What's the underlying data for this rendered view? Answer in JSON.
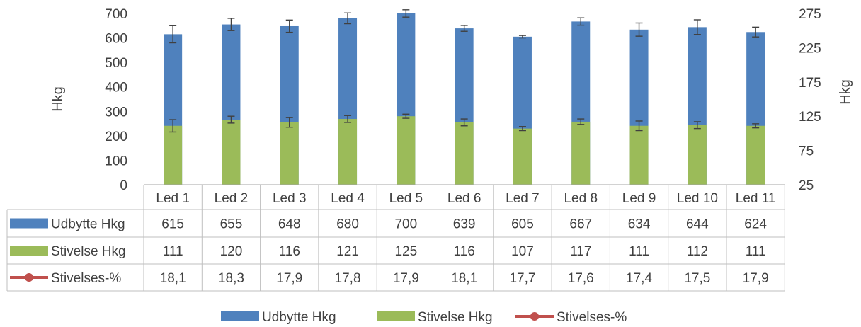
{
  "chart_data": {
    "type": "bar",
    "stacked": true,
    "categories": [
      "Led 1",
      "Led 2",
      "Led 3",
      "Led 4",
      "Led 5",
      "Led 6",
      "Led 7",
      "Led 8",
      "Led 9",
      "Led 10",
      "Led 11"
    ],
    "series": [
      {
        "name": "Udbytte Hkg",
        "axis": "left",
        "values": [
          615,
          655,
          648,
          680,
          700,
          639,
          605,
          667,
          634,
          644,
          624
        ],
        "error": [
          35,
          25,
          25,
          22,
          15,
          12,
          5,
          15,
          27,
          30,
          20
        ],
        "color": "#4f81bd"
      },
      {
        "name": "Stivelse Hkg",
        "axis": "right",
        "values": [
          111,
          120,
          116,
          121,
          125,
          116,
          107,
          117,
          111,
          112,
          111
        ],
        "error": [
          9,
          5,
          7,
          5,
          3,
          5,
          3,
          4,
          7,
          5,
          3
        ],
        "color": "#9bbb59"
      },
      {
        "name": "Stivelses-%",
        "axis": "right",
        "values": [
          "18,1",
          "18,3",
          "17,9",
          "17,8",
          "17,9",
          "18,1",
          "17,7",
          "17,6",
          "17,4",
          "17,5",
          "17,9"
        ],
        "color": "#c0504d",
        "marker": "circle"
      }
    ],
    "ylabel": "Hkg",
    "y2label": "Hkg",
    "ylim": [
      0,
      700
    ],
    "yticks": [
      "0",
      "100",
      "200",
      "300",
      "400",
      "500",
      "600",
      "700"
    ],
    "y2lim": [
      25,
      275
    ],
    "y2ticks": [
      "25",
      "75",
      "125",
      "175",
      "225",
      "275"
    ],
    "legend_position": "bottom",
    "data_table": true,
    "grid": false
  }
}
